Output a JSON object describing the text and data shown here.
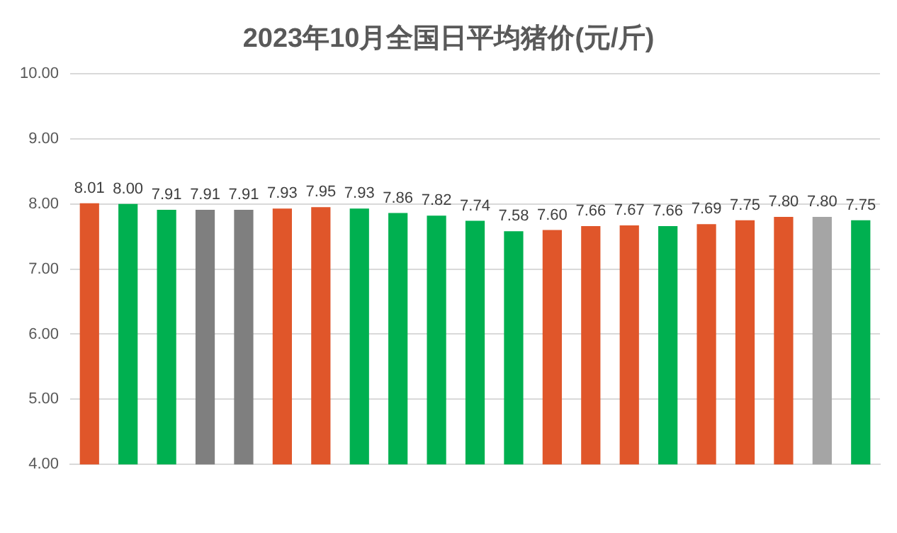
{
  "chart_data": {
    "type": "bar",
    "title": "2023年10月全国日平均猪价(元/斤)",
    "categories": [
      null,
      null,
      null,
      null,
      null,
      null,
      null,
      null,
      null,
      null,
      null,
      null,
      null,
      null,
      null,
      null,
      null,
      null,
      null,
      null,
      null
    ],
    "values": [
      8.01,
      8.0,
      7.91,
      7.91,
      7.91,
      7.93,
      7.95,
      7.93,
      7.86,
      7.82,
      7.74,
      7.58,
      7.6,
      7.66,
      7.67,
      7.66,
      7.69,
      7.75,
      7.8,
      7.8,
      7.75
    ],
    "value_labels": [
      "8.01",
      "8.00",
      "7.91",
      "7.91",
      "7.91",
      "7.93",
      "7.95",
      "7.93",
      "7.86",
      "7.82",
      "7.74",
      "7.58",
      "7.60",
      "7.66",
      "7.67",
      "7.66",
      "7.69",
      "7.75",
      "7.80",
      "7.80",
      "7.75"
    ],
    "colors": [
      "#e0562a",
      "#00b050",
      "#00b050",
      "#7f7f7f",
      "#7f7f7f",
      "#e0562a",
      "#e0562a",
      "#00b050",
      "#00b050",
      "#00b050",
      "#00b050",
      "#00b050",
      "#e0562a",
      "#e0562a",
      "#e0562a",
      "#00b050",
      "#e0562a",
      "#e0562a",
      "#e0562a",
      "#a5a5a5",
      "#00b050"
    ],
    "ylim": [
      4,
      10
    ],
    "yticks": [
      {
        "value": 4,
        "label": "4.00"
      },
      {
        "value": 5,
        "label": "5.00"
      },
      {
        "value": 6,
        "label": "6.00"
      },
      {
        "value": 7,
        "label": "7.00"
      },
      {
        "value": 8,
        "label": "8.00"
      },
      {
        "value": 9,
        "label": "9.00"
      },
      {
        "value": 10,
        "label": "10.00"
      }
    ],
    "grid": "y"
  }
}
